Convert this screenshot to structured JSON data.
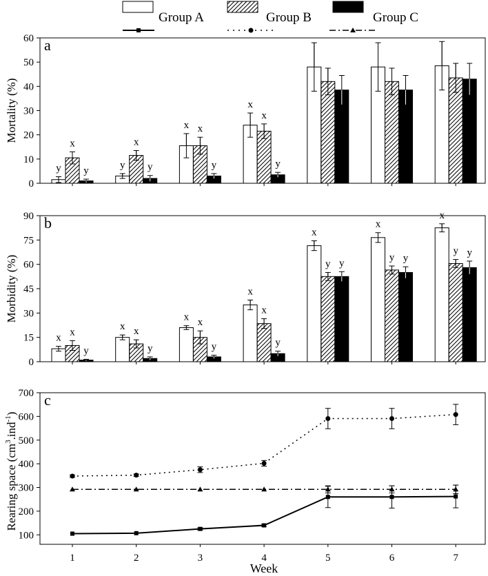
{
  "legend": [
    {
      "name": "Group A",
      "fill": "open",
      "line": "solid",
      "marker": "square"
    },
    {
      "name": "Group B",
      "fill": "hatched",
      "line": "dotted",
      "marker": "circle"
    },
    {
      "name": "Group C",
      "fill": "solid",
      "line": "dashdot",
      "marker": "triangle"
    }
  ],
  "xlabel": "Week",
  "colors": {
    "ink": "#000000",
    "open_fill": "#ffffff"
  },
  "chart_data": [
    {
      "type": "bar",
      "panel_label": "a",
      "ylabel": "Mortality (%)",
      "ylim": [
        0,
        60
      ],
      "yticks": [
        0,
        10,
        20,
        30,
        40,
        50,
        60
      ],
      "categories": [
        "1",
        "2",
        "3",
        "4",
        "5",
        "6",
        "7"
      ],
      "series": [
        {
          "name": "Group A",
          "values": [
            1.5,
            3,
            15.5,
            24,
            48,
            48,
            48.5
          ],
          "errors": [
            1.2,
            1,
            5,
            5,
            10,
            10,
            10
          ],
          "labels": [
            "y",
            "y",
            "x",
            "x",
            "",
            "",
            ""
          ]
        },
        {
          "name": "Group B",
          "values": [
            10.5,
            11.5,
            15.5,
            21.5,
            42,
            42,
            43.5
          ],
          "errors": [
            2.5,
            2,
            3.5,
            3,
            5.5,
            5.5,
            6
          ],
          "labels": [
            "x",
            "x",
            "x",
            "x",
            "",
            "",
            ""
          ]
        },
        {
          "name": "Group C",
          "values": [
            1,
            2,
            3,
            3.5,
            38.5,
            38.5,
            43
          ],
          "errors": [
            0.7,
            1.2,
            1,
            1,
            6,
            6,
            6.5
          ],
          "labels": [
            "y",
            "y",
            "y",
            "y",
            "",
            "",
            ""
          ]
        }
      ]
    },
    {
      "type": "bar",
      "panel_label": "b",
      "ylabel": "Morbidity (%)",
      "ylim": [
        0,
        90
      ],
      "yticks": [
        0,
        15,
        30,
        45,
        60,
        75,
        90
      ],
      "categories": [
        "1",
        "2",
        "3",
        "4",
        "5",
        "6",
        "7"
      ],
      "series": [
        {
          "name": "Group A",
          "values": [
            8,
            15,
            21,
            35,
            71.5,
            76.5,
            82.5
          ],
          "errors": [
            1.5,
            1.5,
            1.2,
            3,
            3,
            3,
            2.5
          ],
          "labels": [
            "x",
            "x",
            "x",
            "x",
            "x",
            "x",
            "x"
          ]
        },
        {
          "name": "Group B",
          "values": [
            10,
            11,
            15,
            23.5,
            52.5,
            56.5,
            60.5
          ],
          "errors": [
            3,
            2.5,
            4,
            3,
            2.5,
            2.5,
            2.5
          ],
          "labels": [
            "x",
            "x",
            "x",
            "x",
            "y",
            "y",
            "y"
          ]
        },
        {
          "name": "Group C",
          "values": [
            1,
            2,
            3,
            5,
            52.5,
            55,
            58
          ],
          "errors": [
            0.5,
            1,
            1,
            1.5,
            3,
            3.5,
            4
          ],
          "labels": [
            "y",
            "y",
            "y",
            "y",
            "y",
            "y",
            "y"
          ]
        }
      ]
    },
    {
      "type": "line",
      "panel_label": "c",
      "ylabel_main": "Rearing space (cm",
      "ylabel_sup3": "3",
      "ylabel_mid": ".ind",
      "ylabel_supm1": "-1",
      "ylabel_end": ")",
      "ylim": [
        60,
        700
      ],
      "yticks": [
        100,
        200,
        300,
        400,
        500,
        600,
        700
      ],
      "x": [
        1,
        2,
        3,
        4,
        5,
        6,
        7
      ],
      "series": [
        {
          "name": "Group A",
          "values": [
            105,
            107,
            125,
            140,
            260,
            260,
            262
          ],
          "errors": [
            0,
            0,
            5,
            5,
            45,
            47,
            48
          ]
        },
        {
          "name": "Group B",
          "values": [
            348,
            352,
            375,
            402,
            591,
            591,
            608
          ],
          "errors": [
            5,
            5,
            12,
            12,
            43,
            43,
            43
          ]
        },
        {
          "name": "Group C",
          "values": [
            292,
            292,
            292,
            292,
            292,
            292,
            292
          ],
          "errors": [
            0,
            0,
            0,
            0,
            15,
            15,
            18
          ]
        }
      ]
    }
  ]
}
